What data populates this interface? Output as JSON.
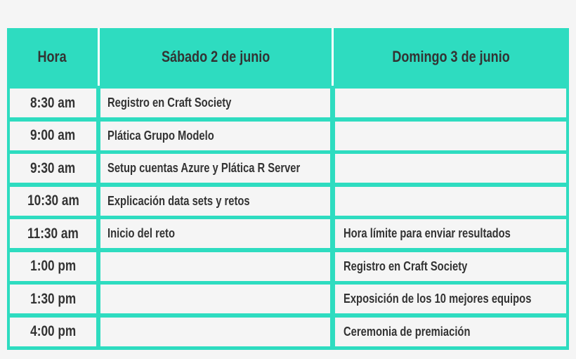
{
  "colors": {
    "accent": "#2edcc0",
    "cell": "#f5f5f5",
    "text": "#333333"
  },
  "headers": [
    "Hora",
    "Sábado 2 de junio",
    "Domingo 3 de junio"
  ],
  "rows": [
    {
      "hora": "8:30 am",
      "sabado": "Registro en Craft Society",
      "domingo": ""
    },
    {
      "hora": "9:00 am",
      "sabado": "Plática Grupo Modelo",
      "domingo": ""
    },
    {
      "hora": "9:30 am",
      "sabado": "Setup cuentas Azure y Plática R Server",
      "domingo": ""
    },
    {
      "hora": "10:30 am",
      "sabado": "Explicación data sets y retos",
      "domingo": ""
    },
    {
      "hora": "11:30 am",
      "sabado": "Inicio del reto",
      "domingo": "Hora límite para enviar resultados"
    },
    {
      "hora": "1:00 pm",
      "sabado": "",
      "domingo": "Registro en Craft Society"
    },
    {
      "hora": "1:30 pm",
      "sabado": "",
      "domingo": "Exposición de los 10 mejores equipos"
    },
    {
      "hora": "4:00 pm",
      "sabado": "",
      "domingo": "Ceremonia de premiación"
    }
  ]
}
